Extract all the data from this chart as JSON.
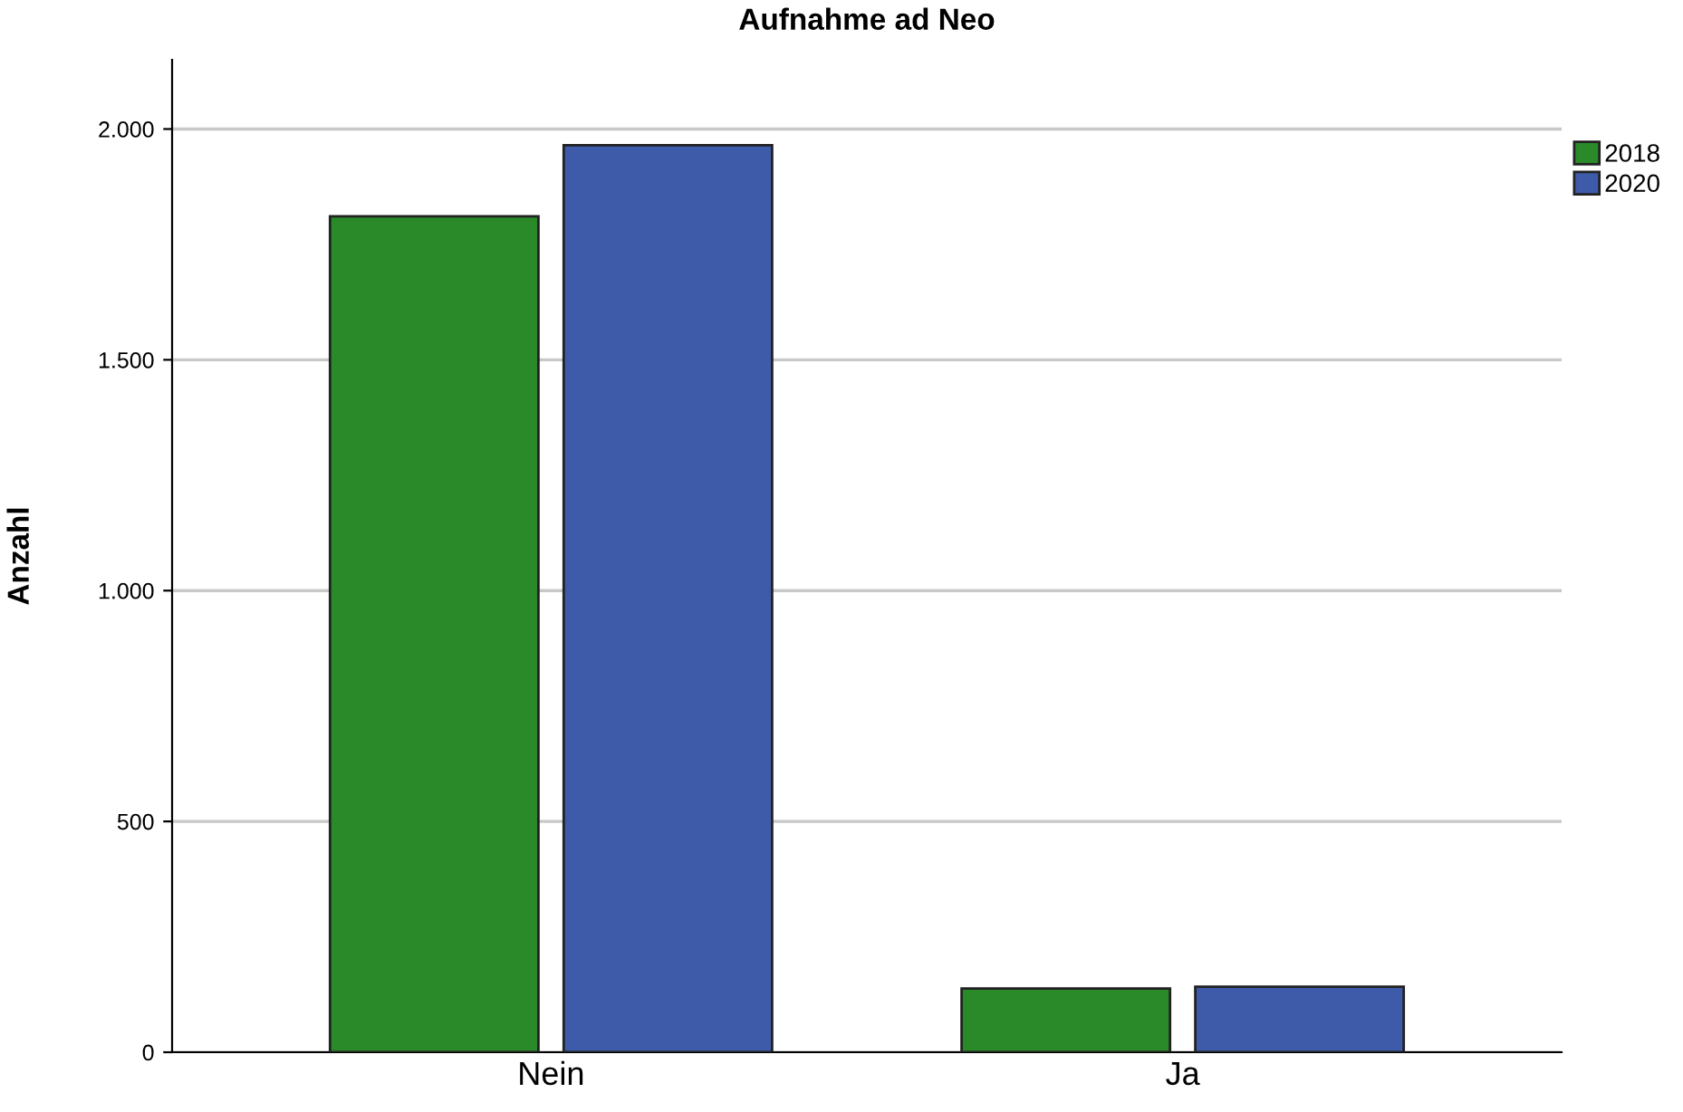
{
  "chart_data": {
    "type": "bar",
    "title": "Aufnahme ad Neo",
    "ylabel": "Anzahl",
    "categories": [
      "Nein",
      "Ja"
    ],
    "series": [
      {
        "name": "2018",
        "color": "#2a8a2a",
        "values": [
          1811,
          138
        ]
      },
      {
        "name": "2020",
        "color": "#3e5ba9",
        "values": [
          1965,
          142
        ]
      }
    ],
    "ylim": [
      0,
      2150
    ],
    "yticks": [
      {
        "value": 0,
        "label": "0"
      },
      {
        "value": 500,
        "label": "500"
      },
      {
        "value": 1000,
        "label": "1.000"
      },
      {
        "value": 1500,
        "label": "1.500"
      },
      {
        "value": 2000,
        "label": "2.000"
      }
    ],
    "grid": "y",
    "legend": "top right"
  }
}
